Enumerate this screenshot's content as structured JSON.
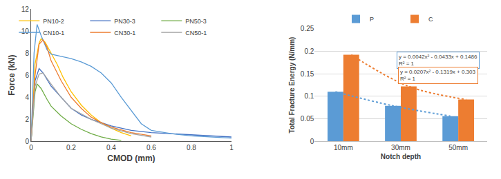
{
  "chart_data": [
    {
      "type": "line",
      "x_label": "CMOD (mm)",
      "y_label": "Force (kN)",
      "xlim": [
        0,
        1
      ],
      "xticks": [
        0,
        0.2,
        0.4,
        0.6,
        0.8,
        1
      ],
      "ylim": [
        0,
        12
      ],
      "yticks": [
        0,
        2,
        4,
        6,
        8,
        10,
        12
      ],
      "grid": false,
      "legend": "top right",
      "series": [
        {
          "name": "PN10-2",
          "color": "#FFC000",
          "x": [
            0,
            0.02,
            0.04,
            0.05,
            0.07,
            0.1,
            0.13,
            0.16,
            0.2,
            0.25,
            0.3,
            0.35,
            0.4,
            0.45,
            0.5
          ],
          "values": [
            0,
            7,
            8.9,
            9.3,
            9,
            8,
            7,
            5.8,
            4.5,
            3.3,
            2.4,
            1.7,
            1.2,
            0.8,
            0.5
          ]
        },
        {
          "name": "PN30-3",
          "color": "#4472C4",
          "x": [
            0,
            0.02,
            0.04,
            0.06,
            0.1,
            0.15,
            0.2,
            0.25,
            0.3,
            0.4,
            0.5,
            0.6,
            0.7,
            0.8,
            0.9,
            1
          ],
          "values": [
            0,
            5.5,
            6.6,
            6.2,
            5,
            4,
            3,
            2.4,
            2,
            1.4,
            1,
            0.8,
            0.7,
            0.6,
            0.5,
            0.4
          ]
        },
        {
          "name": "PN50-3",
          "color": "#70AD47",
          "x": [
            0,
            0.02,
            0.03,
            0.05,
            0.08,
            0.1,
            0.15,
            0.2,
            0.25,
            0.3,
            0.35,
            0.4,
            0.45
          ],
          "values": [
            0,
            4.5,
            5.2,
            4.8,
            3.8,
            3.2,
            2.3,
            1.6,
            1.1,
            0.7,
            0.4,
            0.2,
            0.1
          ]
        },
        {
          "name": "CN10-1",
          "color": "#5B9BD5",
          "x": [
            0,
            0.015,
            0.03,
            0.05,
            0.08,
            0.1,
            0.15,
            0.2,
            0.25,
            0.3,
            0.35,
            0.4,
            0.45,
            0.5,
            0.55,
            0.6,
            0.7,
            0.8,
            0.9,
            1
          ],
          "values": [
            0,
            8,
            10.6,
            9.6,
            8.3,
            7.9,
            7.7,
            7.5,
            7.2,
            6.8,
            6.2,
            5.3,
            4,
            2.8,
            1.6,
            1,
            0.7,
            0.5,
            0.4,
            0.3
          ]
        },
        {
          "name": "CN30-1",
          "color": "#ED7D31",
          "x": [
            0,
            0.02,
            0.04,
            0.06,
            0.08,
            0.1,
            0.15,
            0.2,
            0.25,
            0.3,
            0.35,
            0.4,
            0.5,
            0.6
          ],
          "values": [
            0,
            6,
            8.8,
            9.2,
            8.5,
            7.3,
            5.5,
            4,
            3,
            2.2,
            1.7,
            1.3,
            0.8,
            0.5
          ]
        },
        {
          "name": "CN50-1",
          "color": "#A5A5A5",
          "x": [
            0,
            0.02,
            0.04,
            0.06,
            0.1,
            0.15,
            0.2,
            0.25,
            0.3,
            0.35,
            0.4,
            0.5,
            0.6
          ],
          "values": [
            0,
            5,
            6.1,
            6.2,
            5.2,
            4,
            3,
            2.5,
            2,
            1.6,
            1.2,
            0.7,
            0.4
          ]
        }
      ]
    },
    {
      "type": "bar",
      "x_label": "Notch depth",
      "y_label": "Total Fracture Energy (N/mm)",
      "categories": [
        "10mm",
        "30mm",
        "50mm"
      ],
      "ylim": [
        0,
        0.25
      ],
      "yticks": [
        0,
        0.05,
        0.1,
        0.15,
        0.2,
        0.25
      ],
      "grid": true,
      "legend": "top",
      "series": [
        {
          "name": "P",
          "color": "#5B9BD5",
          "values": [
            0.11,
            0.079,
            0.056
          ],
          "trendline": [
            "y = 0.0042x² - 0.0433x + 0.1486",
            "R² = 1"
          ]
        },
        {
          "name": "C",
          "color": "#ED7D31",
          "values": [
            0.192,
            0.122,
            0.093
          ],
          "trendline": [
            "y = 0.0207x² - 0.1319x + 0.303",
            "R² = 1"
          ]
        }
      ]
    }
  ]
}
